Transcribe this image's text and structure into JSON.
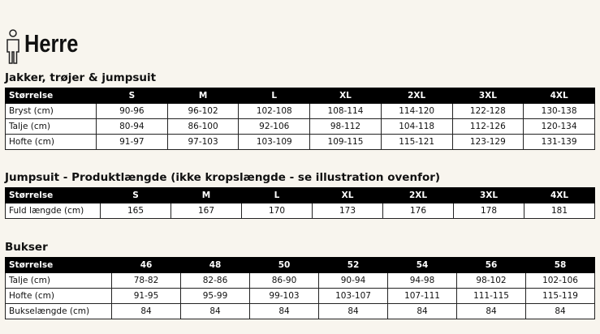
{
  "header": {
    "title": "Herre"
  },
  "sections": [
    {
      "title": "Jakker, trøjer & jumpsuit",
      "columns": [
        "Størrelse",
        "S",
        "M",
        "L",
        "XL",
        "2XL",
        "3XL",
        "4XL"
      ],
      "rows": [
        [
          "Bryst (cm)",
          "90-96",
          "96-102",
          "102-108",
          "108-114",
          "114-120",
          "122-128",
          "130-138"
        ],
        [
          "Talje (cm)",
          "80-94",
          "86-100",
          "92-106",
          "98-112",
          "104-118",
          "112-126",
          "120-134"
        ],
        [
          "Hofte (cm)",
          "91-97",
          "97-103",
          "103-109",
          "109-115",
          "115-121",
          "123-129",
          "131-139"
        ]
      ]
    },
    {
      "title": "Jumpsuit - Produktlængde (ikke kropslængde - se illustration ovenfor)",
      "columns": [
        "Størrelse",
        "S",
        "M",
        "L",
        "XL",
        "2XL",
        "3XL",
        "4XL"
      ],
      "rows": [
        [
          "Fuld længde (cm)",
          "165",
          "167",
          "170",
          "173",
          "176",
          "178",
          "181"
        ]
      ]
    },
    {
      "title": "Bukser",
      "columns": [
        "Størrelse",
        "46",
        "48",
        "50",
        "52",
        "54",
        "56",
        "58"
      ],
      "rows": [
        [
          "Talje (cm)",
          "78-82",
          "82-86",
          "86-90",
          "90-94",
          "94-98",
          "98-102",
          "102-106"
        ],
        [
          "Hofte (cm)",
          "91-95",
          "95-99",
          "99-103",
          "103-107",
          "107-111",
          "111-115",
          "115-119"
        ],
        [
          "Bukselængde (cm)",
          "84",
          "84",
          "84",
          "84",
          "84",
          "84",
          "84"
        ]
      ]
    }
  ]
}
